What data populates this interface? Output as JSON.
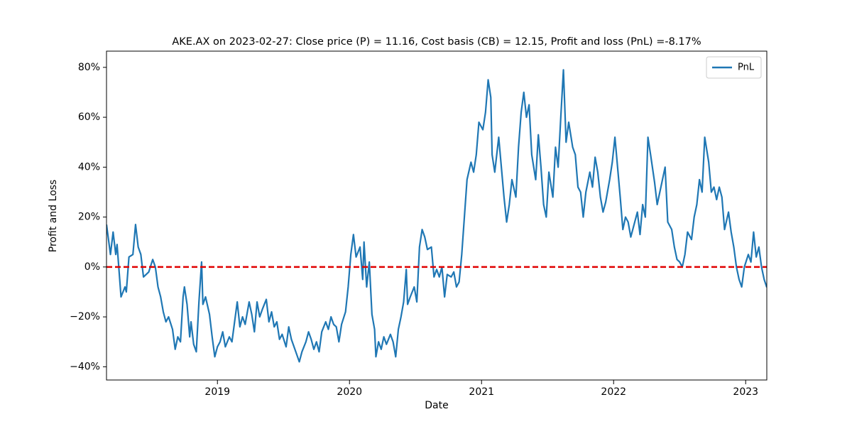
{
  "chart_data": {
    "type": "line",
    "title": "AKE.AX on 2023-02-27: Close price (P) = 11.16, Cost basis (CB) = 12.15, Profit and loss (PnL) =-8.17%",
    "xlabel": "Date",
    "ylabel": "Profit and Loss",
    "xlim": [
      2018.16,
      2023.16
    ],
    "xticks": [
      2019,
      2020,
      2021,
      2022,
      2023
    ],
    "ylim": [
      -45.3,
      86.5
    ],
    "yticks": [
      {
        "value": -40,
        "label": "−40%"
      },
      {
        "value": -20,
        "label": "−20%"
      },
      {
        "value": 0,
        "label": "0%"
      },
      {
        "value": 20,
        "label": "20%"
      },
      {
        "value": 40,
        "label": "40%"
      },
      {
        "value": 60,
        "label": "60%"
      },
      {
        "value": 80,
        "label": "80%"
      }
    ],
    "grid": false,
    "legend": "upper right",
    "hline": {
      "value": 0,
      "color": "#e00000"
    },
    "x": [
      2018.16,
      2018.19,
      2018.21,
      2018.23,
      2018.24,
      2018.27,
      2018.3,
      2018.31,
      2018.33,
      2018.36,
      2018.38,
      2018.4,
      2018.42,
      2018.44,
      2018.46,
      2018.48,
      2018.51,
      2018.53,
      2018.55,
      2018.57,
      2018.59,
      2018.61,
      2018.63,
      2018.66,
      2018.68,
      2018.7,
      2018.72,
      2018.74,
      2018.75,
      2018.77,
      2018.79,
      2018.8,
      2018.82,
      2018.84,
      2018.86,
      2018.88,
      2018.89,
      2018.91,
      2018.94,
      2018.96,
      2018.98,
      2019.0,
      2019.02,
      2019.04,
      2019.06,
      2019.09,
      2019.11,
      2019.13,
      2019.15,
      2019.17,
      2019.19,
      2019.21,
      2019.24,
      2019.26,
      2019.28,
      2019.3,
      2019.32,
      2019.34,
      2019.37,
      2019.39,
      2019.41,
      2019.43,
      2019.45,
      2019.47,
      2019.49,
      2019.52,
      2019.54,
      2019.56,
      2019.58,
      2019.6,
      2019.62,
      2019.64,
      2019.67,
      2019.69,
      2019.71,
      2019.73,
      2019.75,
      2019.77,
      2019.79,
      2019.82,
      2019.84,
      2019.86,
      2019.88,
      2019.9,
      2019.92,
      2019.94,
      2019.97,
      2019.99,
      2020.01,
      2020.03,
      2020.05,
      2020.08,
      2020.1,
      2020.11,
      2020.13,
      2020.15,
      2020.17,
      2020.19,
      2020.2,
      2020.22,
      2020.24,
      2020.26,
      2020.28,
      2020.31,
      2020.33,
      2020.35,
      2020.37,
      2020.39,
      2020.41,
      2020.43,
      2020.44,
      2020.46,
      2020.49,
      2020.51,
      2020.53,
      2020.55,
      2020.57,
      2020.59,
      2020.62,
      2020.64,
      2020.66,
      2020.68,
      2020.7,
      2020.72,
      2020.74,
      2020.77,
      2020.79,
      2020.81,
      2020.83,
      2020.85,
      2020.87,
      2020.89,
      2020.92,
      2020.94,
      2020.96,
      2020.98,
      2021.01,
      2021.03,
      2021.05,
      2021.07,
      2021.08,
      2021.1,
      2021.13,
      2021.15,
      2021.17,
      2021.19,
      2021.21,
      2021.23,
      2021.26,
      2021.28,
      2021.3,
      2021.32,
      2021.34,
      2021.36,
      2021.38,
      2021.41,
      2021.43,
      2021.45,
      2021.47,
      2021.49,
      2021.51,
      2021.54,
      2021.56,
      2021.58,
      2021.6,
      2021.62,
      2021.64,
      2021.66,
      2021.69,
      2021.71,
      2021.73,
      2021.75,
      2021.77,
      2021.79,
      2021.82,
      2021.84,
      2021.86,
      2021.88,
      2021.9,
      2021.92,
      2021.94,
      2021.97,
      2021.99,
      2022.01,
      2022.03,
      2022.05,
      2022.07,
      2022.09,
      2022.11,
      2022.13,
      2022.16,
      2022.18,
      2022.2,
      2022.22,
      2022.24,
      2022.26,
      2022.28,
      2022.31,
      2022.33,
      2022.35,
      2022.37,
      2022.39,
      2022.41,
      2022.44,
      2022.46,
      2022.48,
      2022.5,
      2022.52,
      2022.54,
      2022.56,
      2022.59,
      2022.61,
      2022.63,
      2022.65,
      2022.67,
      2022.69,
      2022.72,
      2022.74,
      2022.76,
      2022.78,
      2022.8,
      2022.82,
      2022.84,
      2022.87,
      2022.89,
      2022.91,
      2022.93,
      2022.95,
      2022.97,
      2022.99,
      2023.02,
      2023.04,
      2023.06,
      2023.08,
      2023.1,
      2023.12,
      2023.14,
      2023.16
    ],
    "series": [
      {
        "name": "PnL",
        "color": "#1f77b4",
        "values": [
          17,
          5,
          14,
          5,
          9,
          -12,
          -8,
          -10,
          4,
          5,
          17,
          8,
          5,
          -4,
          -3,
          -2,
          3,
          0,
          -8,
          -12,
          -18,
          -22,
          -20,
          -25,
          -33,
          -28,
          -30,
          -12,
          -8,
          -15,
          -28,
          -22,
          -31,
          -34,
          -14,
          2,
          -15,
          -12,
          -19,
          -28,
          -36,
          -32,
          -30,
          -26,
          -32,
          -28,
          -30,
          -22,
          -14,
          -24,
          -20,
          -23,
          -14,
          -19,
          -26,
          -14,
          -20,
          -17,
          -13,
          -22,
          -18,
          -24,
          -22,
          -29,
          -27,
          -32,
          -24,
          -29,
          -32,
          -35,
          -38,
          -34,
          -30,
          -26,
          -29,
          -33,
          -30,
          -34,
          -26,
          -22,
          -25,
          -20,
          -23,
          -24,
          -30,
          -23,
          -18,
          -8,
          5,
          13,
          4,
          8,
          -5,
          10,
          -8,
          2,
          -19,
          -25,
          -36,
          -30,
          -33,
          -28,
          -31,
          -27,
          -30,
          -36,
          -25,
          -20,
          -14,
          -1,
          -15,
          -12,
          -8,
          -14,
          8,
          15,
          12,
          7,
          8,
          -4,
          -1,
          -4,
          0,
          -12,
          -3,
          -4,
          -2,
          -8,
          -6,
          5,
          20,
          35,
          42,
          38,
          45,
          58,
          55,
          62,
          75,
          68,
          45,
          38,
          52,
          40,
          28,
          18,
          25,
          35,
          28,
          48,
          62,
          70,
          60,
          65,
          45,
          35,
          53,
          40,
          25,
          20,
          38,
          28,
          48,
          40,
          60,
          79,
          50,
          58,
          48,
          45,
          32,
          30,
          20,
          30,
          38,
          32,
          44,
          38,
          28,
          22,
          26,
          35,
          42,
          52,
          40,
          28,
          15,
          20,
          18,
          12,
          18,
          22,
          13,
          25,
          20,
          52,
          45,
          34,
          25,
          30,
          35,
          40,
          18,
          15,
          8,
          3,
          2,
          0,
          5,
          14,
          11,
          20,
          25,
          35,
          30,
          52,
          42,
          30,
          32,
          27,
          32,
          28,
          15,
          22,
          14,
          8,
          0,
          -5,
          -8,
          0,
          5,
          2,
          14,
          4,
          8,
          0,
          -5,
          -8.17
        ]
      }
    ]
  }
}
